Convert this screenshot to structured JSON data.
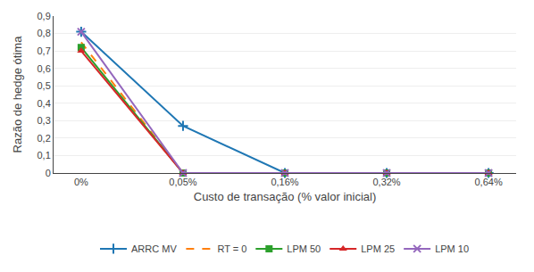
{
  "chart_data": {
    "type": "line",
    "xlabel": "Custo de transação (% valor inicial)",
    "ylabel": "Razão de hedge ótima",
    "categories": [
      "0%",
      "0,05%",
      "0,16%",
      "0,32%",
      "0,64%"
    ],
    "series": [
      {
        "name": "ARRC MV",
        "values": [
          0.81,
          0.27,
          0.0,
          0.0,
          0.0
        ],
        "marker": "plus",
        "line_style": "solid"
      },
      {
        "name": "RT = 0",
        "values": [
          0.75,
          0.0,
          0.0,
          0.0,
          0.0
        ],
        "marker": "none",
        "line_style": "dashed"
      },
      {
        "name": "LPM 50",
        "values": [
          0.72,
          0.0,
          0.0,
          0.0,
          0.0
        ],
        "marker": "square",
        "line_style": "solid"
      },
      {
        "name": "LPM 25",
        "values": [
          0.7,
          0.0,
          0.0,
          0.0,
          0.0
        ],
        "marker": "triangle",
        "line_style": "solid"
      },
      {
        "name": "LPM 10",
        "values": [
          0.81,
          0.0,
          0.0,
          0.0,
          0.0
        ],
        "marker": "x",
        "line_style": "solid"
      }
    ],
    "ylim": [
      0,
      0.9
    ],
    "yticks": [
      0,
      {
        "value": 0.1,
        "label": "0,1"
      },
      {
        "value": 0.2,
        "label": "0,2"
      },
      {
        "value": 0.3,
        "label": "0,3"
      },
      {
        "value": 0.4,
        "label": "0,4"
      },
      {
        "value": 0.5,
        "label": "0,5"
      },
      {
        "value": 0.6,
        "label": "0,6"
      },
      {
        "value": 0.7,
        "label": "0,7"
      },
      {
        "value": 0.8,
        "label": "0,8"
      },
      {
        "value": 0.9,
        "label": "0,9"
      }
    ],
    "grid": true,
    "legend": "bottom"
  }
}
